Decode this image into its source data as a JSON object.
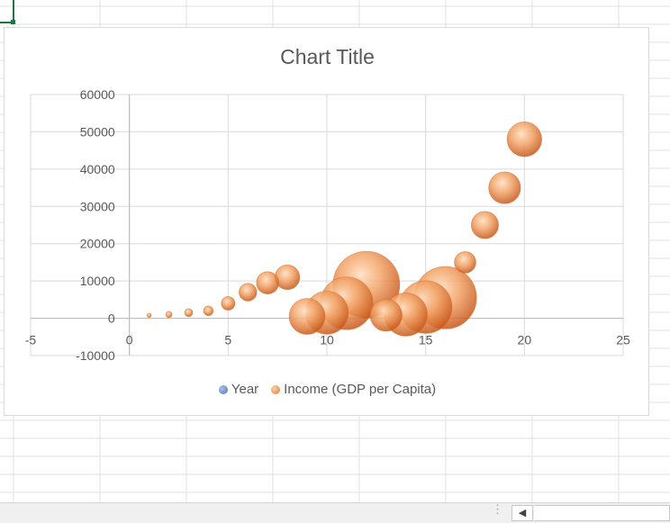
{
  "chart_data": {
    "type": "bubble",
    "title": "Chart Title",
    "xlabel": "",
    "ylabel": "",
    "xlim": [
      -5,
      25
    ],
    "ylim": [
      -10000,
      60000
    ],
    "x_ticks": [
      "-5",
      "0",
      "5",
      "10",
      "15",
      "20",
      "25"
    ],
    "y_ticks": [
      "-10000",
      "0",
      "10000",
      "20000",
      "30000",
      "40000",
      "50000",
      "60000"
    ],
    "grid": true,
    "legend_position": "bottom",
    "series": [
      {
        "name": "Year",
        "color": "#4f74b8",
        "points": []
      },
      {
        "name": "Income (GDP per Capita)",
        "color": "#e07b36",
        "points": [
          {
            "x": 1,
            "y": 800,
            "size": 0.1
          },
          {
            "x": 2,
            "y": 1000,
            "size": 0.2
          },
          {
            "x": 3,
            "y": 1500,
            "size": 0.35
          },
          {
            "x": 4,
            "y": 2000,
            "size": 0.5
          },
          {
            "x": 5,
            "y": 4000,
            "size": 1
          },
          {
            "x": 6,
            "y": 7000,
            "size": 1.7
          },
          {
            "x": 7,
            "y": 9500,
            "size": 2.7
          },
          {
            "x": 8,
            "y": 11000,
            "size": 3.3
          },
          {
            "x": 9,
            "y": 500,
            "size": 7
          },
          {
            "x": 10,
            "y": 1500,
            "size": 10
          },
          {
            "x": 11,
            "y": 4000,
            "size": 15
          },
          {
            "x": 12,
            "y": 9000,
            "size": 24
          },
          {
            "x": 13,
            "y": 800,
            "size": 5.5
          },
          {
            "x": 14,
            "y": 1000,
            "size": 10
          },
          {
            "x": 15,
            "y": 3000,
            "size": 15
          },
          {
            "x": 16,
            "y": 5500,
            "size": 21
          },
          {
            "x": 17,
            "y": 15000,
            "size": 2.5
          },
          {
            "x": 18,
            "y": 25000,
            "size": 4
          },
          {
            "x": 19,
            "y": 35000,
            "size": 5.5
          },
          {
            "x": 20,
            "y": 48000,
            "size": 6.5
          }
        ]
      }
    ]
  },
  "legend": {
    "year": "Year",
    "income": "Income (GDP per Capita)"
  }
}
